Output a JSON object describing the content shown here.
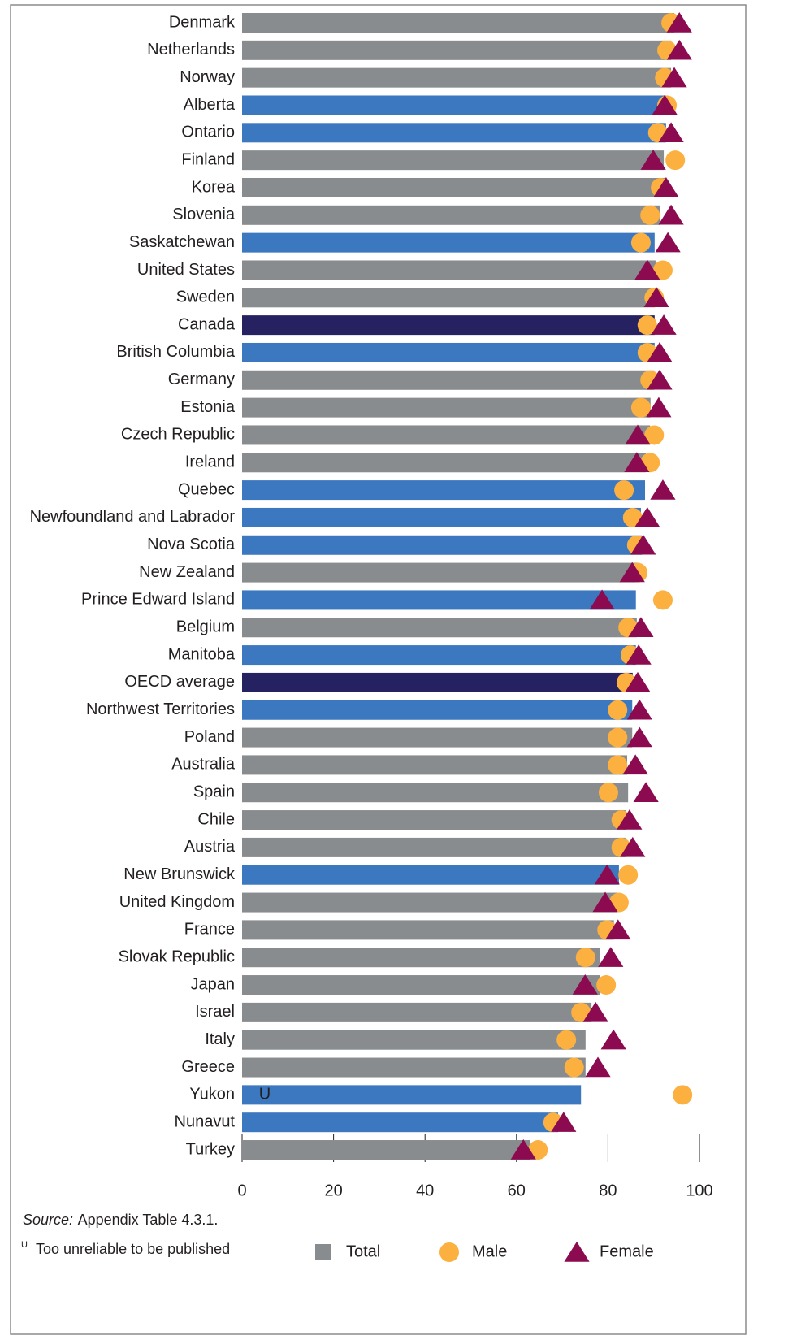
{
  "chart_data": {
    "type": "bar",
    "orientation": "horizontal",
    "categories": [
      "Denmark",
      "Netherlands",
      "Norway",
      "Alberta",
      "Ontario",
      "Finland",
      "Korea",
      "Slovenia",
      "Saskatchewan",
      "United States",
      "Sweden",
      "Canada",
      "British Columbia",
      "Germany",
      "Estonia",
      "Czech Republic",
      "Ireland",
      "Quebec",
      "Newfoundland and Labrador",
      "Nova Scotia",
      "New Zealand",
      "Prince Edward Island",
      "Belgium",
      "Manitoba",
      "OECD average",
      "Northwest Territories",
      "Poland",
      "Australia",
      "Spain",
      "Chile",
      "Austria",
      "New Brunswick",
      "United Kingdom",
      "France",
      "Slovak Republic",
      "Japan",
      "Israel",
      "Italy",
      "Greece",
      "Yukon",
      "Nunavut",
      "Turkey"
    ],
    "series": [
      {
        "name": "Total",
        "color": "#898c8e",
        "colors": [
          "#898c8e",
          "#898c8e",
          "#898c8e",
          "#3b78c0",
          "#3b78c0",
          "#898c8e",
          "#898c8e",
          "#898c8e",
          "#3b78c0",
          "#898c8e",
          "#898c8e",
          "#262262",
          "#3b78c0",
          "#898c8e",
          "#898c8e",
          "#898c8e",
          "#898c8e",
          "#3b78c0",
          "#3b78c0",
          "#3b78c0",
          "#898c8e",
          "#3b78c0",
          "#898c8e",
          "#3b78c0",
          "#262262",
          "#3b78c0",
          "#898c8e",
          "#898c8e",
          "#898c8e",
          "#898c8e",
          "#898c8e",
          "#3b78c0",
          "#898c8e",
          "#898c8e",
          "#898c8e",
          "#898c8e",
          "#898c8e",
          "#898c8e",
          "#898c8e",
          "#3b78c0",
          "#3b78c0",
          "#898c8e"
        ],
        "values": [
          94.5,
          93.8,
          93.8,
          93.1,
          92.7,
          92.2,
          92.4,
          91.3,
          90.2,
          90.4,
          90.2,
          90.2,
          90.2,
          90.1,
          89.3,
          89.2,
          88.3,
          88.1,
          87.2,
          87.4,
          86.9,
          86.1,
          86.3,
          86.1,
          85.4,
          85.3,
          85.3,
          84.2,
          84.4,
          84.0,
          83.8,
          82.4,
          81.9,
          81.3,
          78.2,
          78.2,
          76.4,
          75.1,
          75.1,
          74.1,
          69.1,
          62.9
        ]
      },
      {
        "name": "Male",
        "color": "#fbb040",
        "marker": "circle",
        "values": [
          93.8,
          92.9,
          92.4,
          92.9,
          90.9,
          94.7,
          91.5,
          89.2,
          87.2,
          92.0,
          90.1,
          88.6,
          88.6,
          89.2,
          87.2,
          90.1,
          89.2,
          83.5,
          85.4,
          86.3,
          86.5,
          92.0,
          84.4,
          84.9,
          84.0,
          82.1,
          82.1,
          82.1,
          80.1,
          82.9,
          82.9,
          84.4,
          82.4,
          79.8,
          75.1,
          79.6,
          74.1,
          70.9,
          72.6,
          96.3,
          68.0,
          64.7
        ]
      },
      {
        "name": "Female",
        "color": "#8b0a50",
        "marker": "triangle",
        "values": [
          95.6,
          95.6,
          94.5,
          92.4,
          93.8,
          89.9,
          92.7,
          93.8,
          93.1,
          88.6,
          90.6,
          92.2,
          91.3,
          91.3,
          91.1,
          86.5,
          86.3,
          92.0,
          88.6,
          87.7,
          85.3,
          78.7,
          87.2,
          86.7,
          86.5,
          86.9,
          86.9,
          86.0,
          88.3,
          84.7,
          85.4,
          79.8,
          79.4,
          82.2,
          80.6,
          75.0,
          77.3,
          81.2,
          77.8,
          null,
          70.3,
          61.5
        ]
      }
    ],
    "annotation": {
      "category": "Yukon",
      "text": "U"
    },
    "xlim": [
      0,
      100
    ],
    "xticks": [
      0,
      20,
      40,
      60,
      80,
      100
    ],
    "source": {
      "label": "Source:",
      "text": "Appendix Table 4.3.1."
    },
    "footnote": {
      "symbol": "U",
      "text": "Too unreliable to be published"
    },
    "legend": "bottom"
  }
}
